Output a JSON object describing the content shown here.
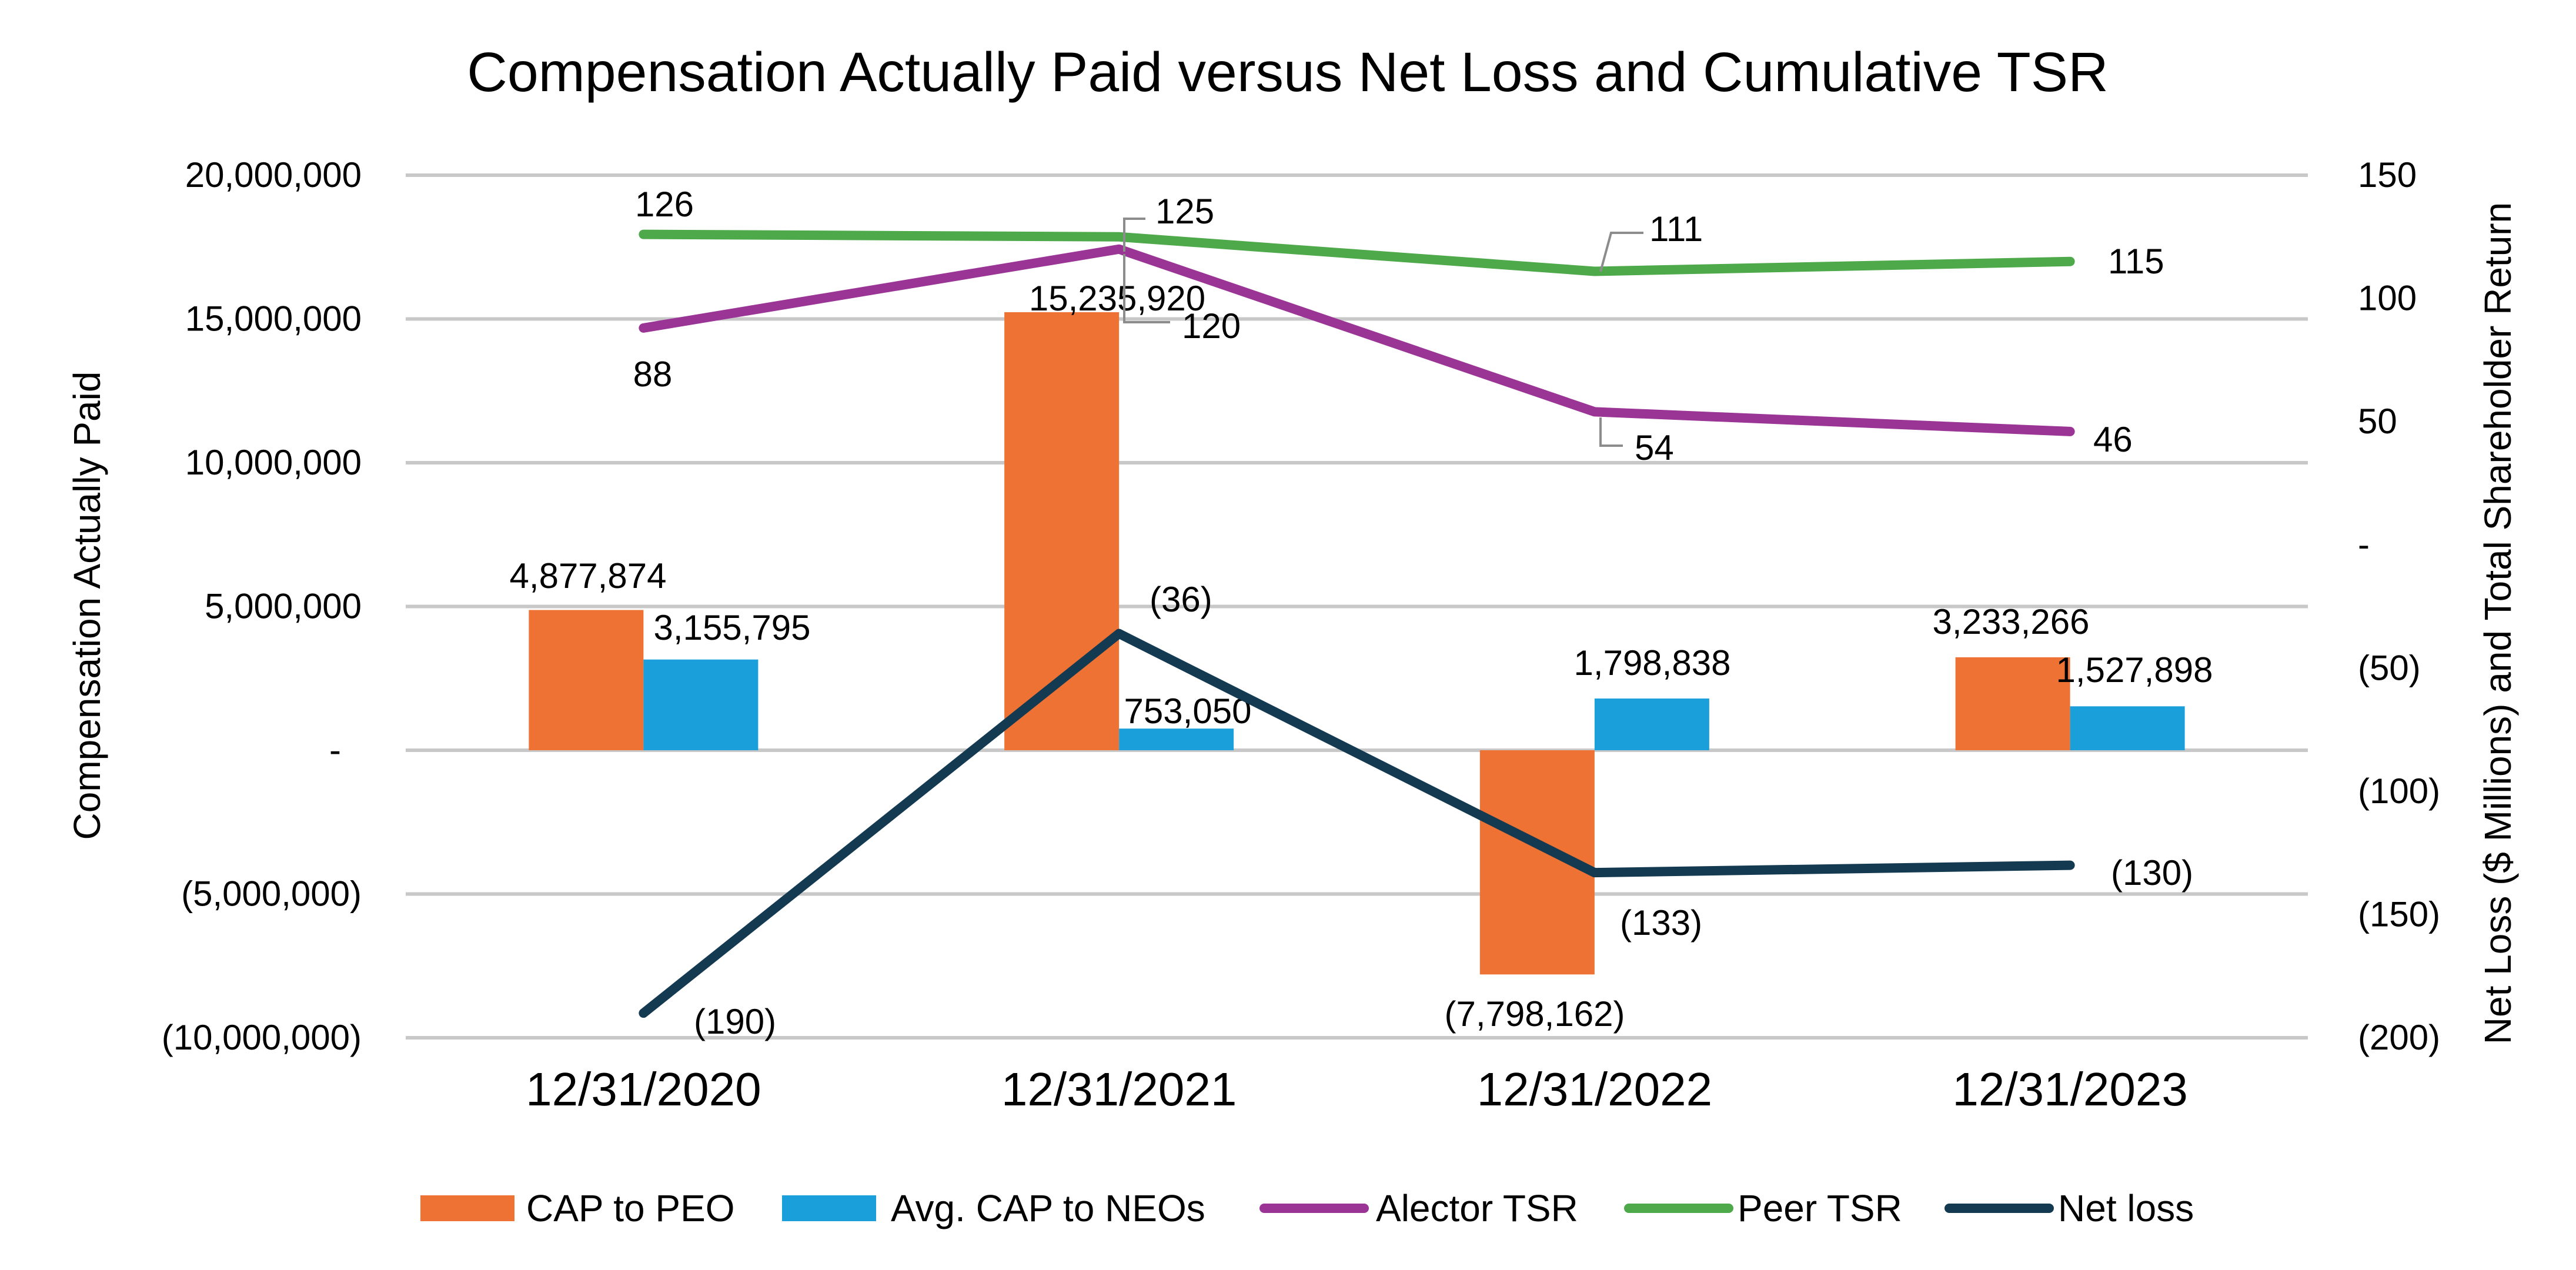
{
  "chart_data": {
    "type": "bar",
    "title": "Compensation Actually Paid versus Net Loss and Cumulative TSR",
    "categories": [
      "12/31/2020",
      "12/31/2021",
      "12/31/2022",
      "12/31/2023"
    ],
    "y_left": {
      "label": "Compensation Actually Paid",
      "lim": [
        -10000000,
        20000000
      ],
      "ticks": [
        20000000,
        15000000,
        10000000,
        5000000,
        0,
        -5000000,
        -10000000
      ],
      "tick_labels": [
        "20,000,000",
        "15,000,000",
        "10,000,000",
        "5,000,000",
        "-",
        "(5,000,000)",
        "(10,000,000)"
      ]
    },
    "y_right": {
      "label": "Net Loss ($ Millions) and Total Shareholder Return",
      "lim": [
        -200,
        150
      ],
      "ticks": [
        150,
        100,
        50,
        0,
        -50,
        -100,
        -150,
        -200
      ],
      "tick_labels": [
        "150",
        "100",
        "50",
        "-",
        "(50)",
        "(100)",
        "(150)",
        "(200)"
      ]
    },
    "series": [
      {
        "name": "CAP to PEO",
        "kind": "bar",
        "axis": "left",
        "color": "#ED7233",
        "values": [
          4877874,
          15235920,
          -7798162,
          3233266
        ],
        "labels": [
          "4,877,874",
          "15,235,920",
          "(7,798,162)",
          "3,233,266"
        ]
      },
      {
        "name": "Avg. CAP to NEOs",
        "kind": "bar",
        "axis": "left",
        "color": "#1A9FDB",
        "values": [
          3155795,
          753050,
          1798838,
          1527898
        ],
        "labels": [
          "3,155,795",
          "753,050",
          "1,798,838",
          "1,527,898"
        ]
      },
      {
        "name": "Alector TSR",
        "kind": "line",
        "axis": "right",
        "color": "#9A3596",
        "values": [
          88,
          120,
          54,
          46
        ],
        "labels": [
          "88",
          "120",
          "54",
          "46"
        ]
      },
      {
        "name": "Peer TSR",
        "kind": "line",
        "axis": "right",
        "color": "#4EA94A",
        "values": [
          126,
          125,
          111,
          115
        ],
        "labels": [
          "126",
          "125",
          "111",
          "115"
        ]
      },
      {
        "name": "Net loss",
        "kind": "line",
        "axis": "right",
        "color": "#143A52",
        "values": [
          -190,
          -36,
          -133,
          -130
        ],
        "labels": [
          "(190)",
          "(36)",
          "(133)",
          "(130)"
        ]
      }
    ],
    "grid": true,
    "legend_position": "bottom"
  }
}
